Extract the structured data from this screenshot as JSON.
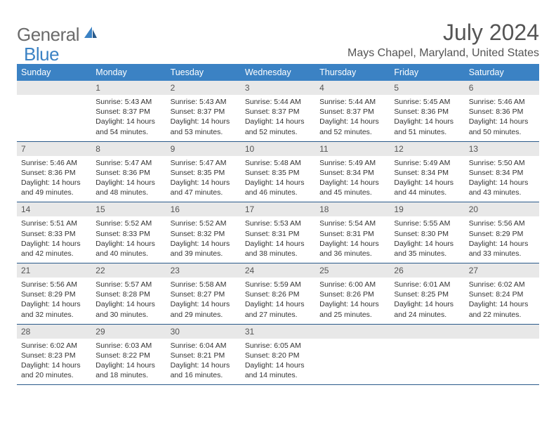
{
  "logo": {
    "text_general": "General",
    "text_blue": "Blue"
  },
  "title": "July 2024",
  "location": "Mays Chapel, Maryland, United States",
  "colors": {
    "header_bg": "#3b82c4",
    "header_text": "#ffffff",
    "daynum_bg": "#e8e8e8",
    "row_border": "#2a5a8a",
    "title_color": "#555555",
    "body_text": "#333333",
    "logo_gray": "#6b6b6b",
    "logo_blue": "#3b82c4",
    "page_bg": "#ffffff"
  },
  "typography": {
    "title_fontsize": 32,
    "location_fontsize": 16,
    "dayheader_fontsize": 12.5,
    "daynum_fontsize": 12,
    "cell_fontsize": 10.5,
    "logo_fontsize": 26
  },
  "layout": {
    "columns": 7,
    "rows": 5,
    "first_weekday_offset": 1
  },
  "day_headers": [
    "Sunday",
    "Monday",
    "Tuesday",
    "Wednesday",
    "Thursday",
    "Friday",
    "Saturday"
  ],
  "days": [
    {
      "n": "1",
      "sunrise": "5:43 AM",
      "sunset": "8:37 PM",
      "daylight": "14 hours and 54 minutes."
    },
    {
      "n": "2",
      "sunrise": "5:43 AM",
      "sunset": "8:37 PM",
      "daylight": "14 hours and 53 minutes."
    },
    {
      "n": "3",
      "sunrise": "5:44 AM",
      "sunset": "8:37 PM",
      "daylight": "14 hours and 52 minutes."
    },
    {
      "n": "4",
      "sunrise": "5:44 AM",
      "sunset": "8:37 PM",
      "daylight": "14 hours and 52 minutes."
    },
    {
      "n": "5",
      "sunrise": "5:45 AM",
      "sunset": "8:36 PM",
      "daylight": "14 hours and 51 minutes."
    },
    {
      "n": "6",
      "sunrise": "5:46 AM",
      "sunset": "8:36 PM",
      "daylight": "14 hours and 50 minutes."
    },
    {
      "n": "7",
      "sunrise": "5:46 AM",
      "sunset": "8:36 PM",
      "daylight": "14 hours and 49 minutes."
    },
    {
      "n": "8",
      "sunrise": "5:47 AM",
      "sunset": "8:36 PM",
      "daylight": "14 hours and 48 minutes."
    },
    {
      "n": "9",
      "sunrise": "5:47 AM",
      "sunset": "8:35 PM",
      "daylight": "14 hours and 47 minutes."
    },
    {
      "n": "10",
      "sunrise": "5:48 AM",
      "sunset": "8:35 PM",
      "daylight": "14 hours and 46 minutes."
    },
    {
      "n": "11",
      "sunrise": "5:49 AM",
      "sunset": "8:34 PM",
      "daylight": "14 hours and 45 minutes."
    },
    {
      "n": "12",
      "sunrise": "5:49 AM",
      "sunset": "8:34 PM",
      "daylight": "14 hours and 44 minutes."
    },
    {
      "n": "13",
      "sunrise": "5:50 AM",
      "sunset": "8:34 PM",
      "daylight": "14 hours and 43 minutes."
    },
    {
      "n": "14",
      "sunrise": "5:51 AM",
      "sunset": "8:33 PM",
      "daylight": "14 hours and 42 minutes."
    },
    {
      "n": "15",
      "sunrise": "5:52 AM",
      "sunset": "8:33 PM",
      "daylight": "14 hours and 40 minutes."
    },
    {
      "n": "16",
      "sunrise": "5:52 AM",
      "sunset": "8:32 PM",
      "daylight": "14 hours and 39 minutes."
    },
    {
      "n": "17",
      "sunrise": "5:53 AM",
      "sunset": "8:31 PM",
      "daylight": "14 hours and 38 minutes."
    },
    {
      "n": "18",
      "sunrise": "5:54 AM",
      "sunset": "8:31 PM",
      "daylight": "14 hours and 36 minutes."
    },
    {
      "n": "19",
      "sunrise": "5:55 AM",
      "sunset": "8:30 PM",
      "daylight": "14 hours and 35 minutes."
    },
    {
      "n": "20",
      "sunrise": "5:56 AM",
      "sunset": "8:29 PM",
      "daylight": "14 hours and 33 minutes."
    },
    {
      "n": "21",
      "sunrise": "5:56 AM",
      "sunset": "8:29 PM",
      "daylight": "14 hours and 32 minutes."
    },
    {
      "n": "22",
      "sunrise": "5:57 AM",
      "sunset": "8:28 PM",
      "daylight": "14 hours and 30 minutes."
    },
    {
      "n": "23",
      "sunrise": "5:58 AM",
      "sunset": "8:27 PM",
      "daylight": "14 hours and 29 minutes."
    },
    {
      "n": "24",
      "sunrise": "5:59 AM",
      "sunset": "8:26 PM",
      "daylight": "14 hours and 27 minutes."
    },
    {
      "n": "25",
      "sunrise": "6:00 AM",
      "sunset": "8:26 PM",
      "daylight": "14 hours and 25 minutes."
    },
    {
      "n": "26",
      "sunrise": "6:01 AM",
      "sunset": "8:25 PM",
      "daylight": "14 hours and 24 minutes."
    },
    {
      "n": "27",
      "sunrise": "6:02 AM",
      "sunset": "8:24 PM",
      "daylight": "14 hours and 22 minutes."
    },
    {
      "n": "28",
      "sunrise": "6:02 AM",
      "sunset": "8:23 PM",
      "daylight": "14 hours and 20 minutes."
    },
    {
      "n": "29",
      "sunrise": "6:03 AM",
      "sunset": "8:22 PM",
      "daylight": "14 hours and 18 minutes."
    },
    {
      "n": "30",
      "sunrise": "6:04 AM",
      "sunset": "8:21 PM",
      "daylight": "14 hours and 16 minutes."
    },
    {
      "n": "31",
      "sunrise": "6:05 AM",
      "sunset": "8:20 PM",
      "daylight": "14 hours and 14 minutes."
    }
  ],
  "labels": {
    "sunrise": "Sunrise:",
    "sunset": "Sunset:",
    "daylight": "Daylight:"
  }
}
